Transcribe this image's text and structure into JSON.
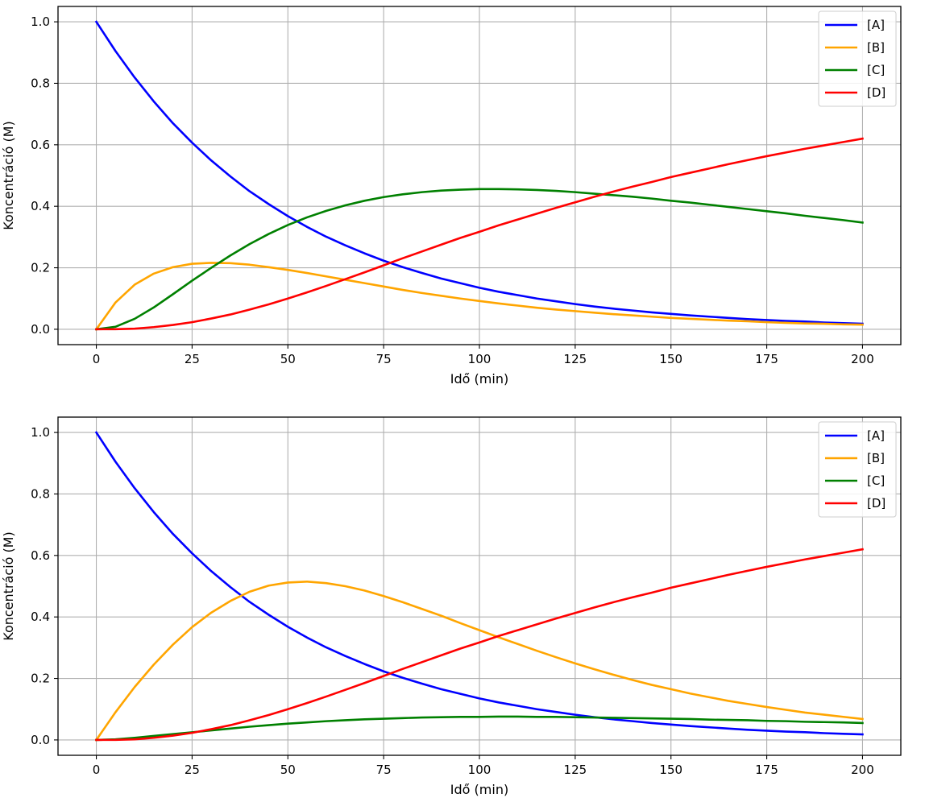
{
  "chart_data": [
    {
      "type": "line",
      "title": "",
      "xlabel": "Idő (min)",
      "ylabel": "Koncentráció (M)",
      "xlim": [
        -10,
        210
      ],
      "ylim": [
        -0.05,
        1.05
      ],
      "xticks": [
        0,
        25,
        50,
        75,
        100,
        125,
        150,
        175,
        200
      ],
      "yticks": [
        0.0,
        0.2,
        0.4,
        0.6,
        0.8,
        1.0
      ],
      "xtick_labels": [
        "0",
        "25",
        "50",
        "75",
        "100",
        "125",
        "150",
        "175",
        "200"
      ],
      "ytick_labels": [
        "0.0",
        "0.2",
        "0.4",
        "0.6",
        "0.8",
        "1.0"
      ],
      "grid": true,
      "legend_position": "top-right",
      "x": [
        0,
        5,
        10,
        15,
        20,
        25,
        30,
        35,
        40,
        45,
        50,
        55,
        60,
        65,
        70,
        75,
        80,
        85,
        90,
        95,
        100,
        105,
        110,
        115,
        120,
        125,
        130,
        135,
        140,
        145,
        150,
        155,
        160,
        165,
        170,
        175,
        180,
        185,
        190,
        195,
        200
      ],
      "series": [
        {
          "name": "[A]",
          "color": "#0000ff",
          "values": [
            1.0,
            0.905,
            0.819,
            0.741,
            0.67,
            0.607,
            0.549,
            0.497,
            0.449,
            0.407,
            0.368,
            0.333,
            0.301,
            0.273,
            0.247,
            0.223,
            0.202,
            0.183,
            0.165,
            0.15,
            0.135,
            0.122,
            0.111,
            0.1,
            0.091,
            0.082,
            0.074,
            0.067,
            0.061,
            0.055,
            0.05,
            0.045,
            0.041,
            0.037,
            0.033,
            0.03,
            0.027,
            0.025,
            0.022,
            0.02,
            0.018
          ]
        },
        {
          "name": "[B]",
          "color": "#ffa500",
          "values": [
            0.0,
            0.087,
            0.145,
            0.181,
            0.202,
            0.213,
            0.216,
            0.215,
            0.21,
            0.202,
            0.193,
            0.183,
            0.172,
            0.161,
            0.15,
            0.139,
            0.128,
            0.118,
            0.109,
            0.1,
            0.092,
            0.084,
            0.077,
            0.07,
            0.064,
            0.059,
            0.054,
            0.049,
            0.045,
            0.041,
            0.037,
            0.034,
            0.031,
            0.028,
            0.026,
            0.023,
            0.021,
            0.019,
            0.018,
            0.016,
            0.015
          ]
        },
        {
          "name": "[C]",
          "color": "#008000",
          "values": [
            0.0,
            0.008,
            0.034,
            0.071,
            0.114,
            0.158,
            0.2,
            0.24,
            0.277,
            0.31,
            0.339,
            0.364,
            0.385,
            0.403,
            0.418,
            0.43,
            0.439,
            0.446,
            0.451,
            0.454,
            0.456,
            0.456,
            0.455,
            0.453,
            0.45,
            0.446,
            0.441,
            0.436,
            0.431,
            0.425,
            0.418,
            0.412,
            0.405,
            0.398,
            0.391,
            0.384,
            0.377,
            0.369,
            0.362,
            0.355,
            0.347
          ]
        },
        {
          "name": "[D]",
          "color": "#ff0000",
          "values": [
            0.0,
            0.0002,
            0.002,
            0.007,
            0.014,
            0.023,
            0.035,
            0.048,
            0.064,
            0.081,
            0.1,
            0.12,
            0.141,
            0.163,
            0.185,
            0.208,
            0.231,
            0.253,
            0.275,
            0.297,
            0.317,
            0.338,
            0.357,
            0.376,
            0.395,
            0.413,
            0.431,
            0.448,
            0.464,
            0.479,
            0.495,
            0.509,
            0.523,
            0.537,
            0.55,
            0.563,
            0.575,
            0.587,
            0.598,
            0.609,
            0.62
          ]
        }
      ]
    },
    {
      "type": "line",
      "title": "",
      "xlabel": "Idő (min)",
      "ylabel": "Koncentráció (M)",
      "xlim": [
        -10,
        210
      ],
      "ylim": [
        -0.05,
        1.05
      ],
      "xticks": [
        0,
        25,
        50,
        75,
        100,
        125,
        150,
        175,
        200
      ],
      "yticks": [
        0.0,
        0.2,
        0.4,
        0.6,
        0.8,
        1.0
      ],
      "xtick_labels": [
        "0",
        "25",
        "50",
        "75",
        "100",
        "125",
        "150",
        "175",
        "200"
      ],
      "ytick_labels": [
        "0.0",
        "0.2",
        "0.4",
        "0.6",
        "0.8",
        "1.0"
      ],
      "grid": true,
      "legend_position": "top-right",
      "x": [
        0,
        5,
        10,
        15,
        20,
        25,
        30,
        35,
        40,
        45,
        50,
        55,
        60,
        65,
        70,
        75,
        80,
        85,
        90,
        95,
        100,
        105,
        110,
        115,
        120,
        125,
        130,
        135,
        140,
        145,
        150,
        155,
        160,
        165,
        170,
        175,
        180,
        185,
        190,
        195,
        200
      ],
      "series": [
        {
          "name": "[A]",
          "color": "#0000ff",
          "values": [
            1.0,
            0.905,
            0.819,
            0.741,
            0.67,
            0.607,
            0.549,
            0.497,
            0.449,
            0.407,
            0.368,
            0.333,
            0.301,
            0.273,
            0.247,
            0.223,
            0.202,
            0.183,
            0.165,
            0.15,
            0.135,
            0.122,
            0.111,
            0.1,
            0.091,
            0.082,
            0.074,
            0.067,
            0.061,
            0.055,
            0.05,
            0.045,
            0.041,
            0.037,
            0.033,
            0.03,
            0.027,
            0.025,
            0.022,
            0.02,
            0.018
          ]
        },
        {
          "name": "[B]",
          "color": "#ffa500",
          "values": [
            0.0,
            0.09,
            0.172,
            0.245,
            0.31,
            0.367,
            0.414,
            0.452,
            0.482,
            0.502,
            0.512,
            0.515,
            0.51,
            0.5,
            0.486,
            0.468,
            0.448,
            0.426,
            0.404,
            0.38,
            0.357,
            0.334,
            0.312,
            0.29,
            0.269,
            0.249,
            0.23,
            0.212,
            0.195,
            0.179,
            0.165,
            0.151,
            0.139,
            0.127,
            0.117,
            0.107,
            0.098,
            0.089,
            0.082,
            0.075,
            0.068
          ]
        },
        {
          "name": "[C]",
          "color": "#008000",
          "values": [
            0.0,
            0.002,
            0.007,
            0.013,
            0.019,
            0.025,
            0.031,
            0.037,
            0.043,
            0.048,
            0.053,
            0.057,
            0.061,
            0.064,
            0.067,
            0.069,
            0.071,
            0.073,
            0.074,
            0.075,
            0.075,
            0.076,
            0.076,
            0.075,
            0.075,
            0.074,
            0.073,
            0.072,
            0.071,
            0.07,
            0.069,
            0.068,
            0.066,
            0.065,
            0.064,
            0.062,
            0.061,
            0.059,
            0.058,
            0.057,
            0.055
          ]
        },
        {
          "name": "[D]",
          "color": "#ff0000",
          "values": [
            0.0,
            0.0002,
            0.002,
            0.007,
            0.014,
            0.023,
            0.035,
            0.048,
            0.064,
            0.081,
            0.1,
            0.12,
            0.141,
            0.163,
            0.185,
            0.208,
            0.231,
            0.253,
            0.275,
            0.297,
            0.317,
            0.338,
            0.357,
            0.376,
            0.395,
            0.413,
            0.431,
            0.448,
            0.464,
            0.479,
            0.495,
            0.509,
            0.523,
            0.537,
            0.55,
            0.563,
            0.575,
            0.587,
            0.598,
            0.609,
            0.62
          ]
        }
      ]
    }
  ]
}
